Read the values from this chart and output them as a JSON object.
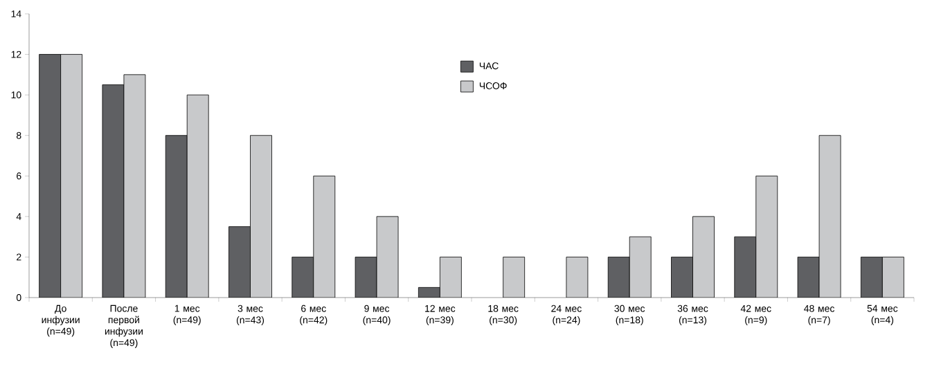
{
  "chart_data": {
    "type": "bar",
    "categories": [
      "До инфузии (n=49)",
      "После первой инфузии (n=49)",
      "1 мес (n=49)",
      "3 мес (n=43)",
      "6 мес (n=42)",
      "9 мес (n=40)",
      "12 мес (n=39)",
      "18 мес (n=30)",
      "24 мес (n=24)",
      "30 мес (n=18)",
      "36 мес (n=13)",
      "42 мес (n=9)",
      "48 мес (n=7)",
      "54 мес (n=4)"
    ],
    "series": [
      {
        "name": "ЧАС",
        "color": "#5f6063",
        "values": [
          12,
          10.5,
          8,
          3.5,
          2,
          2,
          0.5,
          null,
          null,
          2,
          2,
          3,
          2,
          2
        ]
      },
      {
        "name": "ЧСОФ",
        "color": "#c8c9cb",
        "values": [
          12,
          11,
          10,
          8,
          6,
          4,
          2,
          2,
          2,
          3,
          4,
          6,
          8,
          2
        ]
      }
    ],
    "ylim": [
      0,
      14
    ],
    "yticks": [
      0,
      2,
      4,
      6,
      8,
      10,
      12,
      14
    ],
    "legend": "top",
    "grid": false
  }
}
